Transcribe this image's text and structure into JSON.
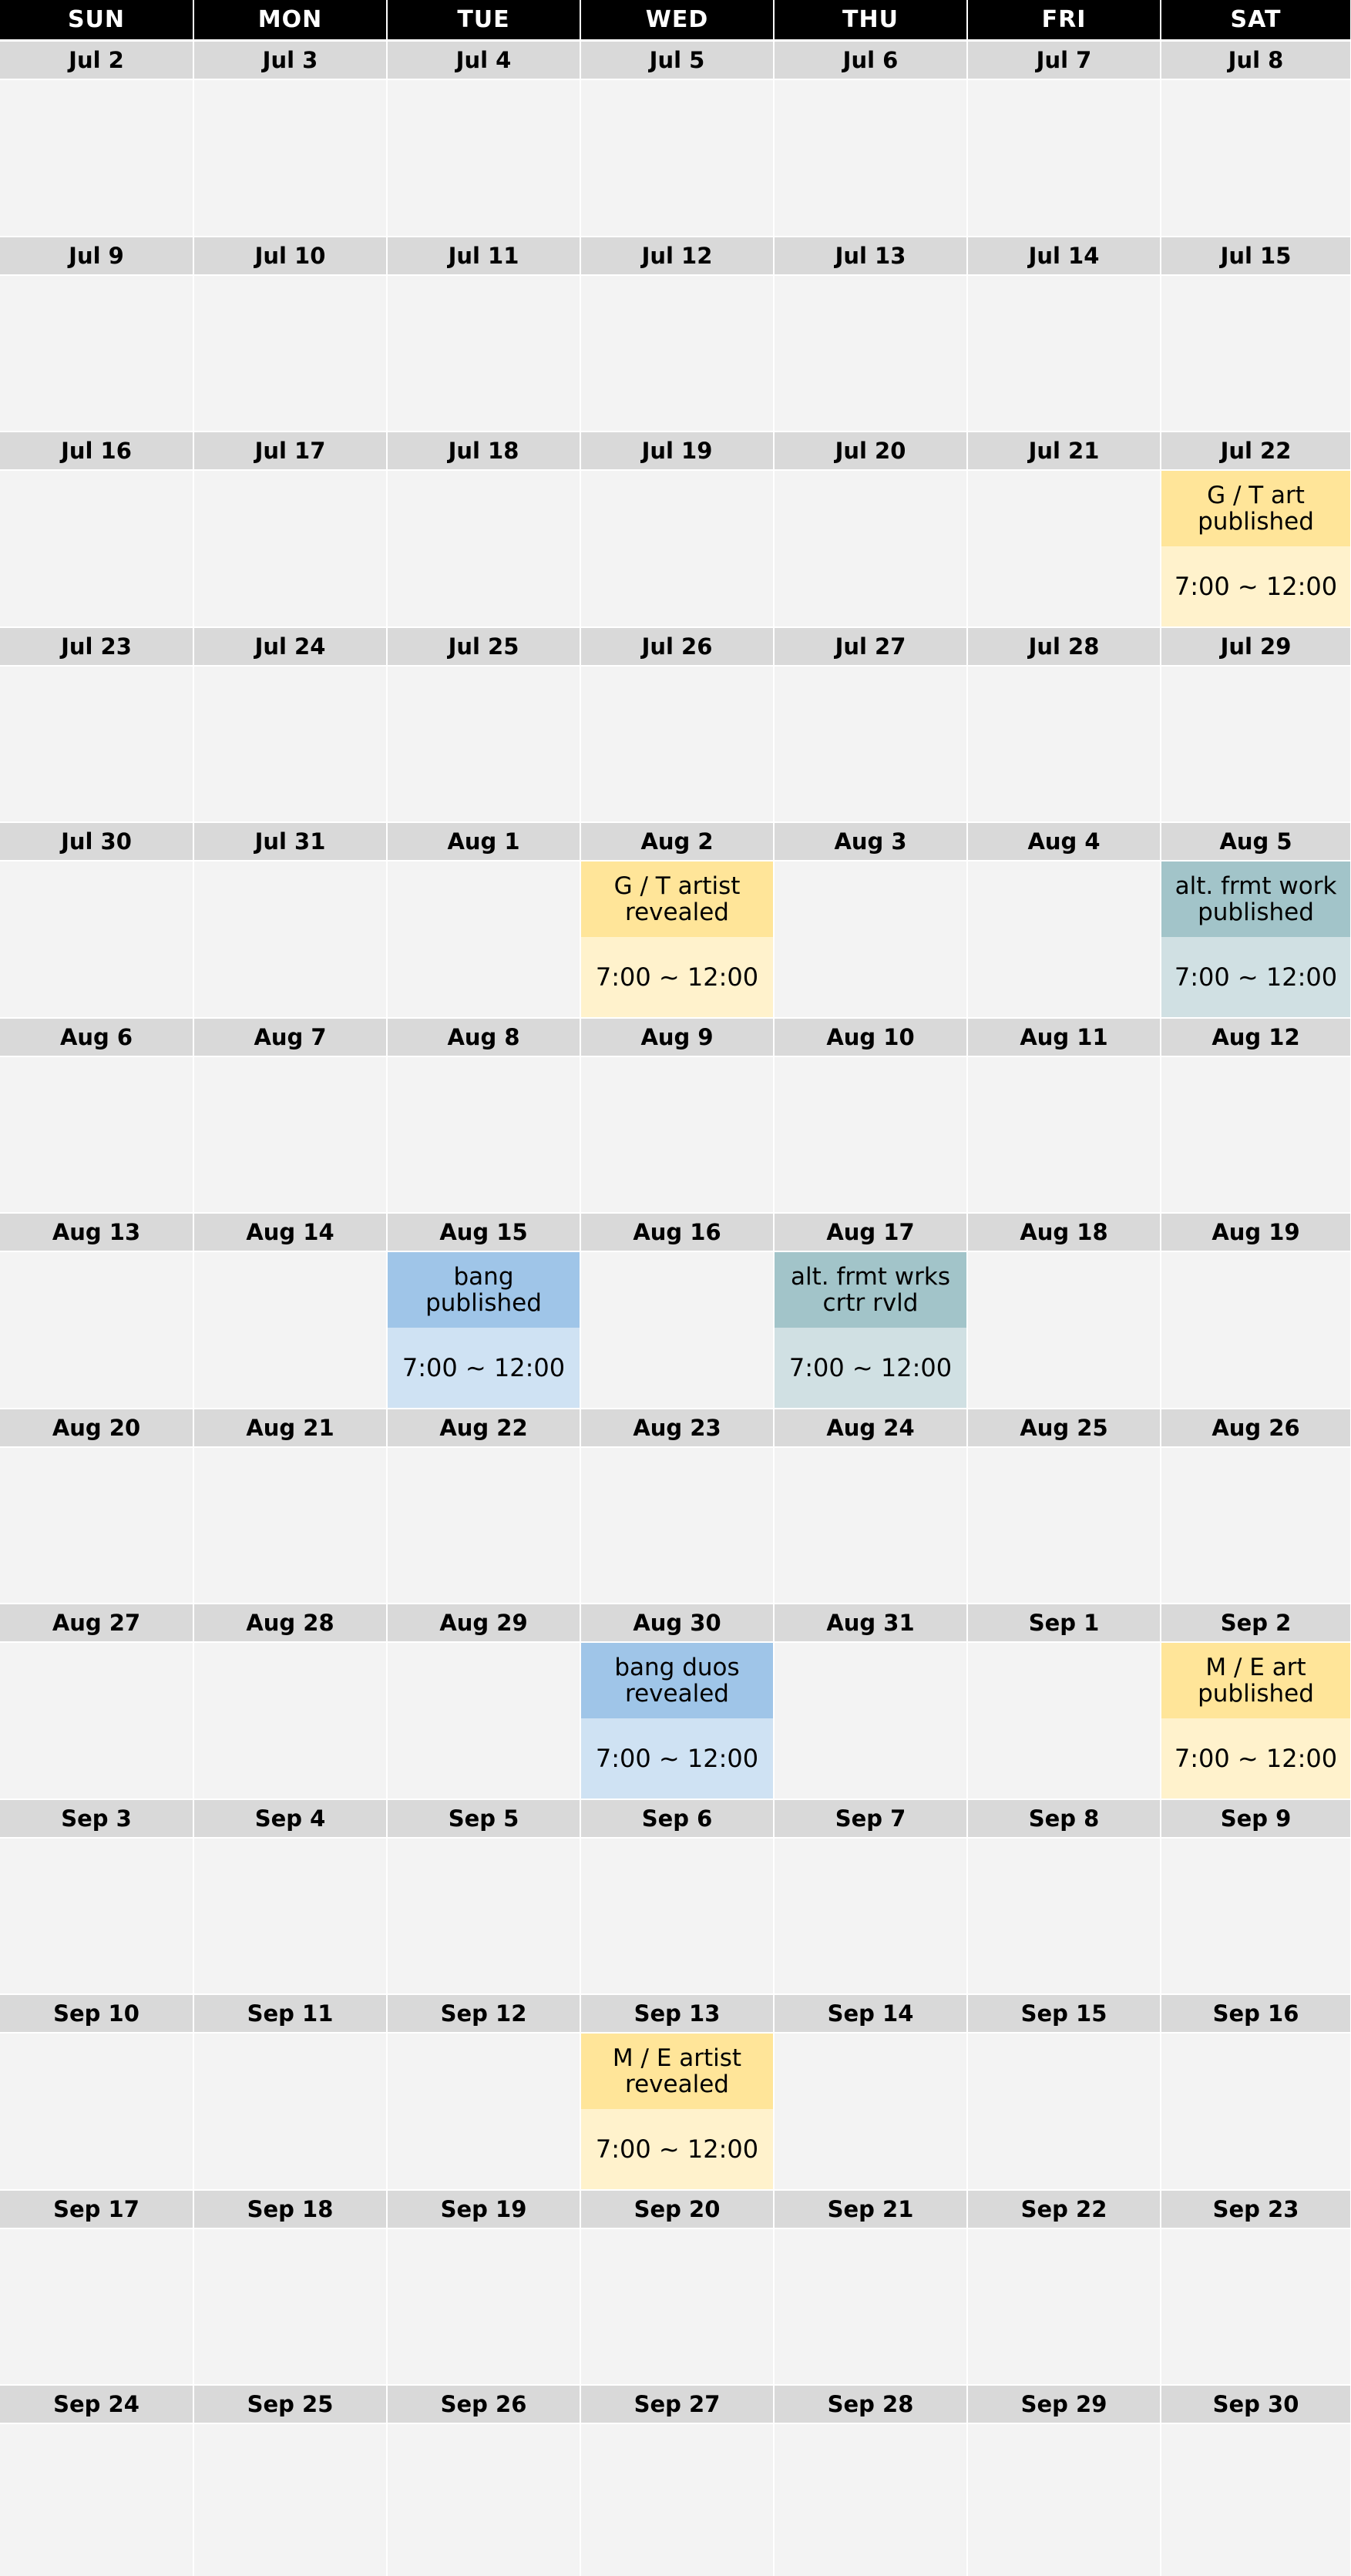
{
  "weekdays": [
    "SUN",
    "MON",
    "TUE",
    "WED",
    "THU",
    "FRI",
    "SAT"
  ],
  "weeks": [
    {
      "dates": [
        "Jul 2",
        "Jul 3",
        "Jul 4",
        "Jul 5",
        "Jul 6",
        "Jul 7",
        "Jul 8"
      ]
    },
    {
      "dates": [
        "Jul 9",
        "Jul 10",
        "Jul 11",
        "Jul 12",
        "Jul 13",
        "Jul 14",
        "Jul 15"
      ]
    },
    {
      "dates": [
        "Jul 16",
        "Jul 17",
        "Jul 18",
        "Jul 19",
        "Jul 20",
        "Jul 21",
        "Jul 22"
      ]
    },
    {
      "dates": [
        "Jul 23",
        "Jul 24",
        "Jul 25",
        "Jul 26",
        "Jul 27",
        "Jul 28",
        "Jul 29"
      ]
    },
    {
      "dates": [
        "Jul 30",
        "Jul 31",
        "Aug 1",
        "Aug 2",
        "Aug 3",
        "Aug 4",
        "Aug 5"
      ]
    },
    {
      "dates": [
        "Aug 6",
        "Aug 7",
        "Aug 8",
        "Aug 9",
        "Aug 10",
        "Aug 11",
        "Aug 12"
      ]
    },
    {
      "dates": [
        "Aug 13",
        "Aug 14",
        "Aug 15",
        "Aug 16",
        "Aug 17",
        "Aug 18",
        "Aug 19"
      ]
    },
    {
      "dates": [
        "Aug 20",
        "Aug 21",
        "Aug 22",
        "Aug 23",
        "Aug 24",
        "Aug 25",
        "Aug 26"
      ]
    },
    {
      "dates": [
        "Aug 27",
        "Aug 28",
        "Aug 29",
        "Aug 30",
        "Aug 31",
        "Sep 1",
        "Sep 2"
      ]
    },
    {
      "dates": [
        "Sep 3",
        "Sep 4",
        "Sep 5",
        "Sep 6",
        "Sep 7",
        "Sep 8",
        "Sep 9"
      ]
    },
    {
      "dates": [
        "Sep 10",
        "Sep 11",
        "Sep 12",
        "Sep 13",
        "Sep 14",
        "Sep 15",
        "Sep 16"
      ]
    },
    {
      "dates": [
        "Sep 17",
        "Sep 18",
        "Sep 19",
        "Sep 20",
        "Sep 21",
        "Sep 22",
        "Sep 23"
      ]
    },
    {
      "dates": [
        "Sep 24",
        "Sep 25",
        "Sep 26",
        "Sep 27",
        "Sep 28",
        "Sep 29",
        "Sep 30"
      ]
    }
  ],
  "events": [
    {
      "date": "Jul 22",
      "title": "G / T art\npublished",
      "time": "7:00 ~ 12:00",
      "theme": "yellow"
    },
    {
      "date": "Aug 2",
      "title": "G / T artist\nrevealed",
      "time": "7:00 ~ 12:00",
      "theme": "yellow"
    },
    {
      "date": "Aug 5",
      "title": "alt. frmt work\npublished",
      "time": "7:00 ~ 12:00",
      "theme": "teal"
    },
    {
      "date": "Aug 15",
      "title": "bang\npublished",
      "time": "7:00 ~ 12:00",
      "theme": "blue"
    },
    {
      "date": "Aug 17",
      "title": "alt. frmt wrks\ncrtr rvld",
      "time": "7:00 ~ 12:00",
      "theme": "teal"
    },
    {
      "date": "Aug 30",
      "title": "bang duos\nrevealed",
      "time": "7:00 ~ 12:00",
      "theme": "blue"
    },
    {
      "date": "Sep 2",
      "title": "M / E art\npublished",
      "time": "7:00 ~ 12:00",
      "theme": "yellow"
    },
    {
      "date": "Sep 13",
      "title": "M / E artist\nrevealed",
      "time": "7:00 ~ 12:00",
      "theme": "yellow"
    }
  ],
  "colors": {
    "header_bg": "#000000",
    "header_text": "#ffffff",
    "date_bg": "#d9d9d9",
    "cell_bg": "#f3f3f3",
    "grid_line": "#ffffff",
    "themes": {
      "yellow": {
        "title_bg": "#ffe599",
        "time_bg": "#fff2cc"
      },
      "teal": {
        "title_bg": "#a2c4c9",
        "time_bg": "#d0e0e3"
      },
      "blue": {
        "title_bg": "#9fc5e8",
        "time_bg": "#cfe2f3"
      }
    }
  }
}
